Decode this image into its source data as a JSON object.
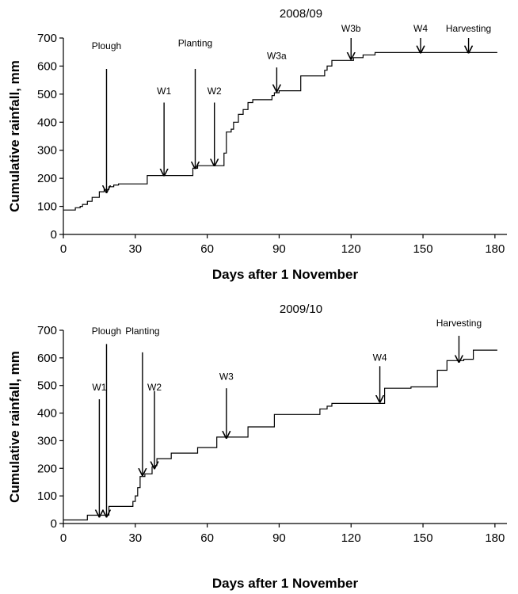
{
  "chart_data": [
    {
      "type": "line",
      "title": "2008/09",
      "xlabel": "Days after 1 November",
      "ylabel": "Cumulative rainfall, mm",
      "xlim": [
        0,
        185
      ],
      "ylim": [
        0,
        700
      ],
      "xticks": [
        "0",
        "30",
        "60",
        "90",
        "120",
        "150",
        "180"
      ],
      "yticks": [
        "0",
        "100",
        "200",
        "300",
        "400",
        "500",
        "600",
        "700"
      ],
      "grid": false,
      "series": [
        {
          "step": true,
          "points": [
            [
              0,
              87
            ],
            [
              4,
              87
            ],
            [
              5,
              95
            ],
            [
              7,
              100
            ],
            [
              8,
              107
            ],
            [
              10,
              118
            ],
            [
              12,
              132
            ],
            [
              15,
              152
            ],
            [
              17,
              160
            ],
            [
              19,
              170
            ],
            [
              21,
              176
            ],
            [
              23,
              180
            ],
            [
              34,
              180
            ],
            [
              35,
              210
            ],
            [
              53,
              210
            ],
            [
              54,
              236
            ],
            [
              56,
              245
            ],
            [
              66,
              245
            ],
            [
              67,
              290
            ],
            [
              68,
              365
            ],
            [
              70,
              375
            ],
            [
              71,
              400
            ],
            [
              73,
              428
            ],
            [
              75,
              445
            ],
            [
              77,
              470
            ],
            [
              79,
              480
            ],
            [
              85,
              480
            ],
            [
              87,
              495
            ],
            [
              88,
              505
            ],
            [
              90,
              512
            ],
            [
              98,
              512
            ],
            [
              99,
              565
            ],
            [
              107,
              565
            ],
            [
              109,
              585
            ],
            [
              110,
              600
            ],
            [
              112,
              620
            ],
            [
              119,
              620
            ],
            [
              121,
              630
            ],
            [
              125,
              640
            ],
            [
              130,
              648
            ],
            [
              181,
              648
            ]
          ]
        }
      ],
      "annotations": [
        {
          "label": "Plough",
          "x": 18,
          "y_from": 590,
          "y_to": 150,
          "label_y": 660
        },
        {
          "label": "W1",
          "x": 42,
          "y_from": 470,
          "y_to": 210,
          "label_y": 500
        },
        {
          "label": "Planting",
          "x": 55,
          "y_from": 590,
          "y_to": 235,
          "label_y": 670
        },
        {
          "label": "W2",
          "x": 63,
          "y_from": 470,
          "y_to": 245,
          "label_y": 500
        },
        {
          "label": "W3a",
          "x": 89,
          "y_from": 595,
          "y_to": 510,
          "label_y": 625
        },
        {
          "label": "W3b",
          "x": 120,
          "y_from": 700,
          "y_to": 625,
          "label_y": 722
        },
        {
          "label": "W4",
          "x": 149,
          "y_from": 700,
          "y_to": 648,
          "label_y": 722
        },
        {
          "label": "Harvesting",
          "x": 169,
          "y_from": 700,
          "y_to": 648,
          "label_y": 722
        }
      ]
    },
    {
      "type": "line",
      "title": "2009/10",
      "xlabel": "Days after 1 November",
      "ylabel": "Cumulative rainfall, mm",
      "xlim": [
        0,
        185
      ],
      "ylim": [
        0,
        700
      ],
      "xticks": [
        "0",
        "30",
        "60",
        "90",
        "120",
        "150",
        "180"
      ],
      "yticks": [
        "0",
        "100",
        "200",
        "300",
        "400",
        "500",
        "600",
        "700"
      ],
      "grid": false,
      "series": [
        {
          "step": true,
          "points": [
            [
              0,
              13
            ],
            [
              9,
              13
            ],
            [
              10,
              30
            ],
            [
              18,
              30
            ],
            [
              19,
              62
            ],
            [
              27,
              62
            ],
            [
              29,
              80
            ],
            [
              30,
              100
            ],
            [
              31,
              130
            ],
            [
              32,
              170
            ],
            [
              34,
              180
            ],
            [
              36,
              180
            ],
            [
              37,
              205
            ],
            [
              38,
              210
            ],
            [
              39,
              235
            ],
            [
              44,
              235
            ],
            [
              45,
              255
            ],
            [
              55,
              255
            ],
            [
              56,
              275
            ],
            [
              63,
              275
            ],
            [
              64,
              313
            ],
            [
              75,
              313
            ],
            [
              77,
              350
            ],
            [
              87,
              350
            ],
            [
              88,
              395
            ],
            [
              106,
              395
            ],
            [
              107,
              415
            ],
            [
              110,
              425
            ],
            [
              112,
              435
            ],
            [
              131,
              435
            ],
            [
              134,
              490
            ],
            [
              144,
              490
            ],
            [
              145,
              495
            ],
            [
              155,
              495
            ],
            [
              156,
              555
            ],
            [
              158,
              555
            ],
            [
              160,
              590
            ],
            [
              166,
              590
            ],
            [
              167,
              595
            ],
            [
              170,
              595
            ],
            [
              171,
              628
            ],
            [
              181,
              628
            ]
          ]
        }
      ],
      "annotations": [
        {
          "label": "W1",
          "x": 15,
          "y_from": 450,
          "y_to": 25,
          "label_y": 482
        },
        {
          "label": "Plough",
          "x": 18,
          "y_from": 650,
          "y_to": 25,
          "label_y": 685
        },
        {
          "label": "Planting",
          "x": 33,
          "y_from": 620,
          "y_to": 175,
          "label_y": 685
        },
        {
          "label": "W2",
          "x": 38,
          "y_from": 480,
          "y_to": 200,
          "label_y": 482
        },
        {
          "label": "W3",
          "x": 68,
          "y_from": 490,
          "y_to": 310,
          "label_y": 520
        },
        {
          "label": "W4",
          "x": 132,
          "y_from": 570,
          "y_to": 440,
          "label_y": 590
        },
        {
          "label": "Harvesting",
          "x": 165,
          "y_from": 680,
          "y_to": 585,
          "label_y": 715
        }
      ]
    }
  ]
}
